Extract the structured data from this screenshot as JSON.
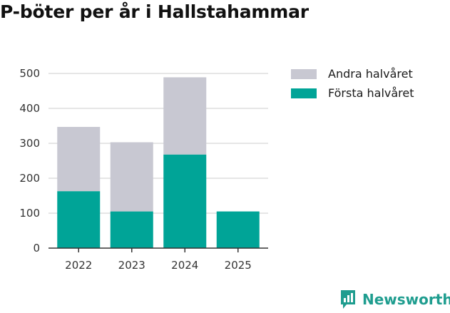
{
  "chart_data": {
    "type": "bar",
    "stacked": true,
    "title": "P-böter per år i Hallstahammar",
    "categories": [
      "2022",
      "2023",
      "2024",
      "2025"
    ],
    "series": [
      {
        "name": "Första halvåret",
        "color": "#00a497",
        "values": [
          163,
          105,
          268,
          105
        ]
      },
      {
        "name": "Andra halvåret",
        "color": "#c8c8d2",
        "values": [
          184,
          198,
          221,
          0
        ]
      }
    ],
    "legend": [
      "Andra halvåret",
      "Första halvåret"
    ],
    "ylim": [
      0,
      500
    ],
    "yticks": [
      0,
      100,
      200,
      300,
      400,
      500
    ],
    "grid": true,
    "legend_position": "right"
  },
  "branding": {
    "name": "Newsworthy",
    "color": "#1f9d8f"
  }
}
